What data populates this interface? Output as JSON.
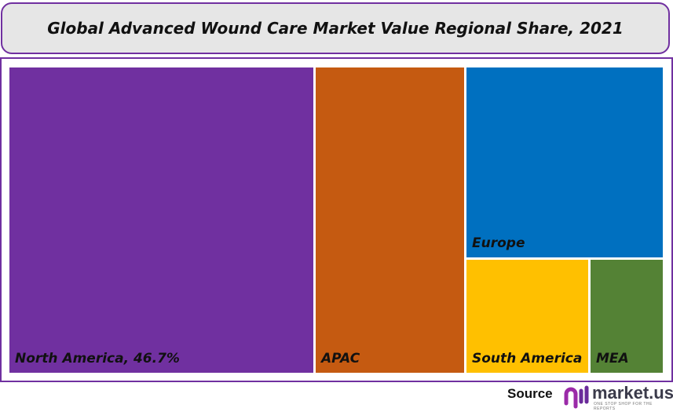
{
  "chart_data": {
    "type": "treemap",
    "title": "Global Advanced Wound Care Market Value Regional Share, 2021",
    "categories": [
      "North America",
      "APAC",
      "Europe",
      "South America",
      "MEA"
    ],
    "labels": [
      "North America, 46.7%",
      "APAC",
      "Europe",
      "South America",
      "MEA"
    ],
    "values": [
      46.7,
      null,
      null,
      null,
      null
    ],
    "colors": [
      "#7030a0",
      "#c55a11",
      "#0070c0",
      "#ffc000",
      "#548235"
    ]
  },
  "source": {
    "label": "Source",
    "logo_text": "market.us",
    "logo_tagline": "ONE STOP SHOP FOR THE REPORTS"
  }
}
